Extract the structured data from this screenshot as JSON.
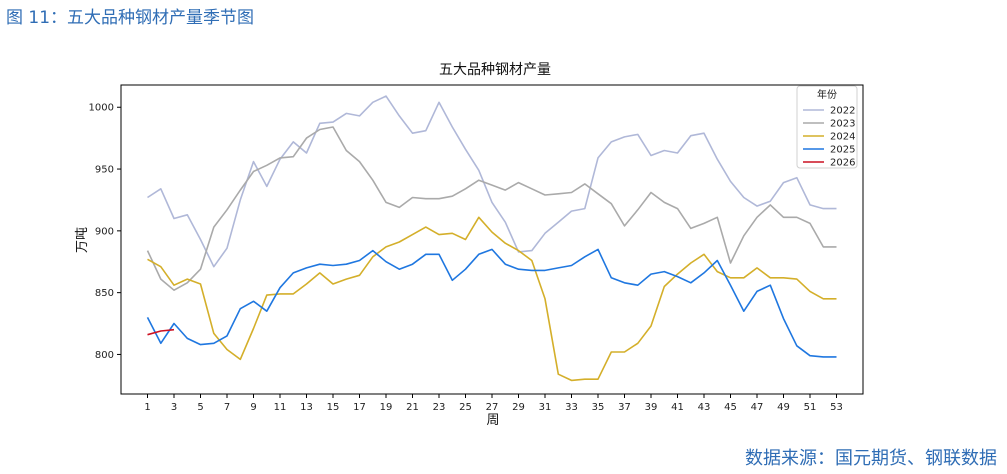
{
  "caption": "图 11：五大品种钢材产量季节图",
  "source": "数据来源：国元期货、钢联数据",
  "chart_data": {
    "type": "line",
    "title": "五大品种钢材产量",
    "xlabel": "周",
    "ylabel": "万吨",
    "xlim": [
      -1,
      55
    ],
    "ylim": [
      768,
      1018
    ],
    "xticks": [
      1,
      3,
      5,
      7,
      9,
      11,
      13,
      15,
      17,
      19,
      21,
      23,
      25,
      27,
      29,
      31,
      33,
      35,
      37,
      39,
      41,
      43,
      45,
      47,
      49,
      51,
      53
    ],
    "yticks": [
      800,
      850,
      900,
      950,
      1000
    ],
    "grid": false,
    "legend": {
      "title": "年份",
      "placement": "top-right"
    },
    "series": [
      {
        "name": "2022",
        "color": "#b0b8d8",
        "x": [
          1,
          2,
          3,
          4,
          5,
          6,
          7,
          8,
          9,
          10,
          11,
          12,
          13,
          14,
          15,
          16,
          17,
          18,
          19,
          20,
          21,
          22,
          23,
          24,
          25,
          26,
          27,
          28,
          29,
          30,
          31,
          32,
          33,
          34,
          35,
          36,
          37,
          38,
          39,
          40,
          41,
          42,
          43,
          44,
          45,
          46,
          47,
          48,
          49,
          50,
          51,
          52,
          53
        ],
        "y": [
          927,
          934,
          910,
          913,
          893,
          871,
          886,
          925,
          956,
          936,
          958,
          972,
          963,
          987,
          988,
          995,
          993,
          1004,
          1009,
          993,
          979,
          981,
          1004,
          984,
          966,
          949,
          923,
          907,
          883,
          884,
          898,
          907,
          916,
          918,
          959,
          972,
          976,
          978,
          961,
          965,
          963,
          977,
          979,
          958,
          940,
          927,
          920,
          924,
          939,
          943,
          921,
          918,
          918
        ]
      },
      {
        "name": "2023",
        "color": "#aaaaaa",
        "x": [
          1,
          2,
          3,
          4,
          5,
          6,
          7,
          8,
          9,
          10,
          11,
          12,
          13,
          14,
          15,
          16,
          17,
          18,
          19,
          20,
          21,
          22,
          23,
          24,
          25,
          26,
          27,
          28,
          29,
          30,
          31,
          32,
          33,
          34,
          35,
          36,
          37,
          38,
          39,
          40,
          41,
          42,
          43,
          44,
          45,
          46,
          47,
          48,
          49,
          50,
          51,
          52,
          53
        ],
        "y": [
          884,
          861,
          852,
          858,
          869,
          903,
          917,
          933,
          948,
          953,
          959,
          960,
          975,
          982,
          984,
          965,
          956,
          941,
          923,
          919,
          927,
          926,
          926,
          928,
          934,
          941,
          937,
          933,
          939,
          934,
          929,
          930,
          931,
          938,
          930,
          922,
          904,
          917,
          931,
          923,
          918,
          902,
          906,
          911,
          874,
          896,
          911,
          921,
          911,
          911,
          906,
          887,
          887
        ]
      },
      {
        "name": "2024",
        "color": "#d4af2a",
        "x": [
          1,
          2,
          3,
          4,
          5,
          6,
          7,
          8,
          9,
          10,
          11,
          12,
          13,
          14,
          15,
          16,
          17,
          18,
          19,
          20,
          21,
          22,
          23,
          24,
          25,
          26,
          27,
          28,
          29,
          30,
          31,
          32,
          33,
          34,
          35,
          36,
          37,
          38,
          39,
          40,
          41,
          42,
          43,
          44,
          45,
          46,
          47,
          48,
          49,
          50,
          51,
          52,
          53
        ],
        "y": [
          877,
          871,
          856,
          861,
          857,
          817,
          804,
          796,
          821,
          848,
          849,
          849,
          857,
          866,
          857,
          861,
          864,
          879,
          887,
          891,
          897,
          903,
          897,
          898,
          893,
          911,
          899,
          890,
          884,
          876,
          845,
          784,
          779,
          780,
          780,
          802,
          802,
          809,
          823,
          855,
          865,
          874,
          881,
          867,
          862,
          862,
          870,
          862,
          862,
          861,
          851,
          845,
          845
        ]
      },
      {
        "name": "2025",
        "color": "#1f77e0",
        "x": [
          1,
          2,
          3,
          4,
          5,
          6,
          7,
          8,
          9,
          10,
          11,
          12,
          13,
          14,
          15,
          16,
          17,
          18,
          19,
          20,
          21,
          22,
          23,
          24,
          25,
          26,
          27,
          28,
          29,
          30,
          31,
          32,
          33,
          34,
          35,
          36,
          37,
          38,
          39,
          40,
          41,
          42,
          43,
          44,
          45,
          46,
          47,
          48,
          49,
          50,
          51,
          52,
          53
        ],
        "y": [
          830,
          809,
          825,
          813,
          808,
          809,
          815,
          837,
          843,
          835,
          854,
          866,
          870,
          873,
          872,
          873,
          876,
          884,
          875,
          869,
          873,
          881,
          881,
          860,
          869,
          881,
          885,
          873,
          869,
          868,
          868,
          870,
          872,
          879,
          885,
          862,
          858,
          856,
          865,
          867,
          863,
          858,
          866,
          876,
          856,
          835,
          851,
          856,
          829,
          807,
          799,
          798,
          798
        ]
      },
      {
        "name": "2026",
        "color": "#cc1122",
        "x": [
          1,
          2,
          3
        ],
        "y": [
          816,
          819,
          820
        ]
      }
    ]
  }
}
